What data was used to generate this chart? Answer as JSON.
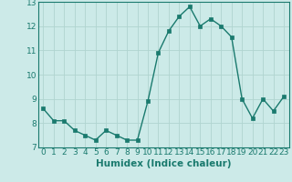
{
  "x": [
    0,
    1,
    2,
    3,
    4,
    5,
    6,
    7,
    8,
    9,
    10,
    11,
    12,
    13,
    14,
    15,
    16,
    17,
    18,
    19,
    20,
    21,
    22,
    23
  ],
  "y": [
    8.6,
    8.1,
    8.1,
    7.7,
    7.5,
    7.3,
    7.7,
    7.5,
    7.3,
    7.3,
    8.9,
    10.9,
    11.8,
    12.4,
    12.8,
    12.0,
    12.3,
    12.0,
    11.55,
    9.0,
    8.2,
    9.0,
    8.5,
    9.1
  ],
  "xlabel": "Humidex (Indice chaleur)",
  "ylim": [
    7,
    13
  ],
  "xlim": [
    -0.5,
    23.5
  ],
  "yticks": [
    7,
    8,
    9,
    10,
    11,
    12,
    13
  ],
  "xtick_labels": [
    "0",
    "1",
    "2",
    "3",
    "4",
    "5",
    "6",
    "7",
    "8",
    "9",
    "10",
    "11",
    "12",
    "13",
    "14",
    "15",
    "16",
    "17",
    "18",
    "19",
    "20",
    "21",
    "22",
    "23"
  ],
  "line_color": "#1a7a6e",
  "marker_color": "#1a7a6e",
  "bg_color": "#cceae8",
  "grid_color": "#b0d4d0",
  "axis_color": "#1a7a6e",
  "label_color": "#1a7a6e",
  "tick_color": "#1a7a6e",
  "xlabel_fontsize": 7.5,
  "tick_fontsize": 6.5,
  "linewidth": 1.0,
  "markersize": 2.5
}
